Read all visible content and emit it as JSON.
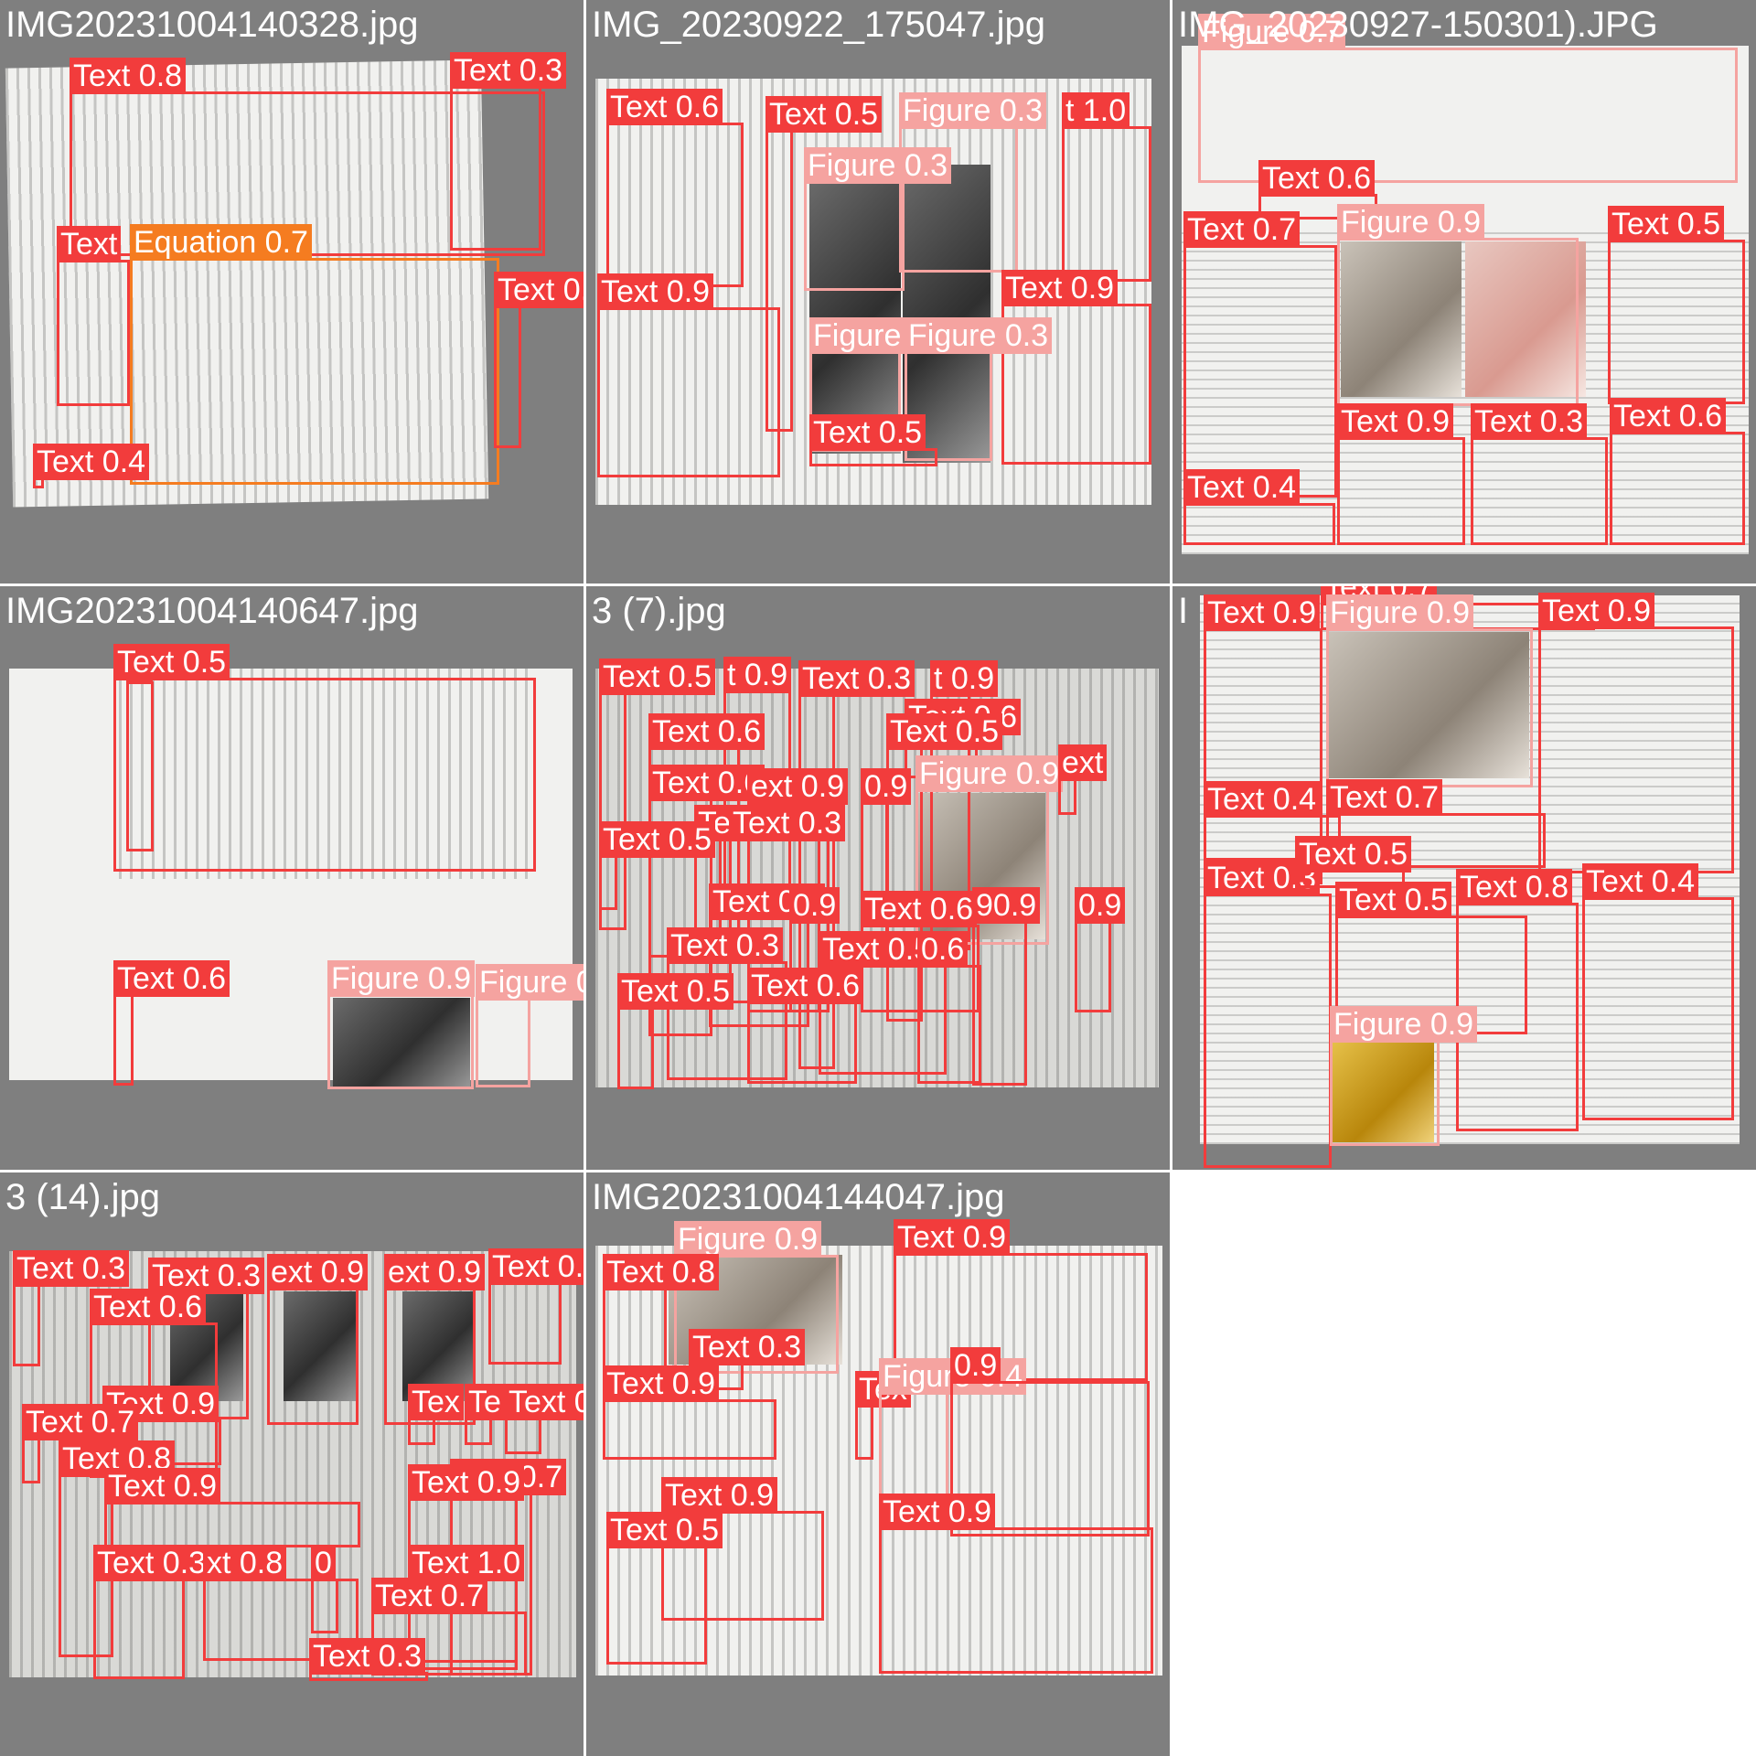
{
  "grid": {
    "cells": [
      {
        "title": "IMG20231004140328.jpg",
        "labels": [
          "Text 0.8",
          "Text 0.3",
          "Text",
          "Equation 0.7",
          "Text 0.",
          "Text 0.4"
        ]
      },
      {
        "title": "IMG_20230922_175047.jpg",
        "labels": [
          "Text 0.6",
          "Text 0.5",
          "Figure 0.3",
          "t 1.0",
          "Figure 0.3",
          "Text 0.9",
          "Text 0.9",
          "Figure",
          "Figure 0.3",
          "Text 0.5"
        ]
      },
      {
        "title": "IMG_20230927-150301).JPG",
        "labels": [
          "Figure 0.7",
          "Text 0.6",
          "Text 0.7",
          "Figure 0.9",
          "Text 0.5",
          "Text 0.9",
          "Text 0.3",
          "Text 0.6",
          "Text 0.4"
        ]
      },
      {
        "title": "IMG20231004140647.jpg",
        "labels": [
          "T",
          "Text 0.5",
          "Text 0.6",
          "Figure 0.9",
          "Figure 0.3"
        ]
      },
      {
        "title": "3 (7).jpg",
        "labels": [
          "Text 0.5",
          "t 0.9",
          "Text 0.3",
          "t 0.9",
          "Text 0.6",
          "Text 0.6",
          "Text 0.5",
          "Text 0.6",
          "ext 0.9",
          "0.9",
          "Figure 0.9",
          "Te",
          "Text 0.3",
          "Text 0.5",
          "Text 0.9",
          "0.9",
          "Text 0.6",
          "90.9",
          "0.9",
          "Text 0.3",
          "Text 0.5",
          "0.6",
          "Text 0.5",
          "Text 0.6",
          "ext"
        ]
      },
      {
        "title": "I",
        "labels": [
          "Text 0.7",
          "Text 0.9",
          "Figure 0.9",
          "Text 0.9",
          "Text 0.4",
          "Text 0.7",
          "Text 0.3",
          "Text 0.5",
          "Text 0.5",
          "Text 0.8",
          "Text 0.4",
          "Figure 0.9"
        ]
      },
      {
        "title": "3 (14).jpg",
        "labels": [
          "Text 0.3",
          "Text 0.3",
          "ext 0.9",
          "ext 0.9",
          "Text 0.",
          "Text 0.6",
          "Text 0.9",
          "Text 0.7",
          "Text 0.8",
          "Tex",
          "Te",
          "Text 0.3",
          "Text 0.7",
          "Text 0.9",
          "Text 0.9",
          "Text 0.3",
          "xt 0.8",
          "0",
          "Text 1.0",
          "Text 0.7",
          "Text 0.3"
        ]
      },
      {
        "title": "IMG20231004144047.jpg",
        "labels": [
          "Figure 0.9",
          "Text 0.9",
          "Text 0.8",
          "Text 0.3",
          "Text 0.9",
          "Tex",
          "Figure 0.4",
          "0.9",
          "Text 0.9",
          "Text 0.9",
          "Text 0.5"
        ]
      }
    ]
  },
  "colors": {
    "text_box": "#f23c3c",
    "figure_box": "#f5a3a0",
    "equation_box": "#f57c20",
    "tile_background": "#7f7f7f"
  }
}
